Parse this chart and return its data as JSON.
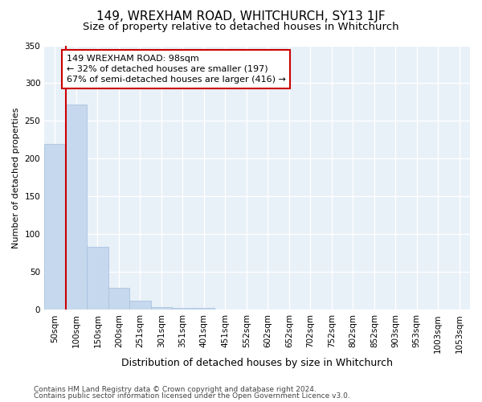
{
  "title": "149, WREXHAM ROAD, WHITCHURCH, SY13 1JF",
  "subtitle": "Size of property relative to detached houses in Whitchurch",
  "xlabel": "Distribution of detached houses by size in Whitchurch",
  "ylabel": "Number of detached properties",
  "bar_labels": [
    "50sqm",
    "100sqm",
    "150sqm",
    "200sqm",
    "251sqm",
    "301sqm",
    "351sqm",
    "401sqm",
    "451sqm",
    "552sqm",
    "602sqm",
    "652sqm",
    "702sqm",
    "752sqm",
    "802sqm",
    "852sqm",
    "903sqm",
    "953sqm",
    "1003sqm",
    "1053sqm"
  ],
  "bar_values": [
    220,
    272,
    84,
    29,
    12,
    4,
    3,
    3,
    0,
    0,
    0,
    0,
    0,
    0,
    0,
    0,
    0,
    0,
    0,
    0
  ],
  "bar_color": "#c5d8ed",
  "bar_edgecolor": "#aac4e0",
  "property_line_color": "#cc0000",
  "annotation_text": "149 WREXHAM ROAD: 98sqm\n← 32% of detached houses are smaller (197)\n67% of semi-detached houses are larger (416) →",
  "annotation_box_facecolor": "#ffffff",
  "annotation_box_edgecolor": "#cc0000",
  "ylim": [
    0,
    350
  ],
  "yticks": [
    0,
    50,
    100,
    150,
    200,
    250,
    300,
    350
  ],
  "figure_facecolor": "#ffffff",
  "plot_facecolor": "#e8f0f8",
  "grid_color": "#ffffff",
  "title_fontsize": 11,
  "subtitle_fontsize": 9.5,
  "xlabel_fontsize": 9,
  "ylabel_fontsize": 8,
  "tick_fontsize": 7.5,
  "annotation_fontsize": 8,
  "footer_fontsize": 6.5,
  "footer_line1": "Contains HM Land Registry data © Crown copyright and database right 2024.",
  "footer_line2": "Contains public sector information licensed under the Open Government Licence v3.0."
}
